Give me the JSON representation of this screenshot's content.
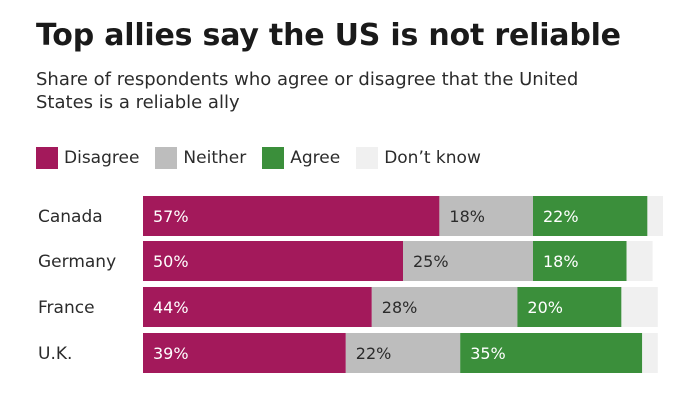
{
  "chart_data": {
    "type": "bar",
    "orientation": "horizontal",
    "stacked": true,
    "title": "Top allies say the US is not reliable",
    "subtitle": "Share of respondents who agree or disagree that the United States is a reliable ally",
    "categories": [
      "Canada",
      "Germany",
      "France",
      "U.K."
    ],
    "series": [
      {
        "name": "Disagree",
        "color": "#a3195b",
        "values": [
          57,
          50,
          44,
          39
        ]
      },
      {
        "name": "Neither",
        "color": "#bdbdbd",
        "values": [
          18,
          25,
          28,
          22
        ]
      },
      {
        "name": "Agree",
        "color": "#3b8f3b",
        "values": [
          22,
          18,
          20,
          35
        ]
      },
      {
        "name": "Don’t know",
        "color": "#f0f0f0",
        "values": [
          3,
          5,
          7,
          3
        ]
      }
    ],
    "data_labels": [
      [
        "57%",
        "18%",
        "22%",
        ""
      ],
      [
        "50%",
        "25%",
        "18%",
        ""
      ],
      [
        "44%",
        "28%",
        "20%",
        ""
      ],
      [
        "39%",
        "22%",
        "35%",
        ""
      ]
    ],
    "xlim": [
      0,
      100
    ],
    "unit": "%"
  }
}
